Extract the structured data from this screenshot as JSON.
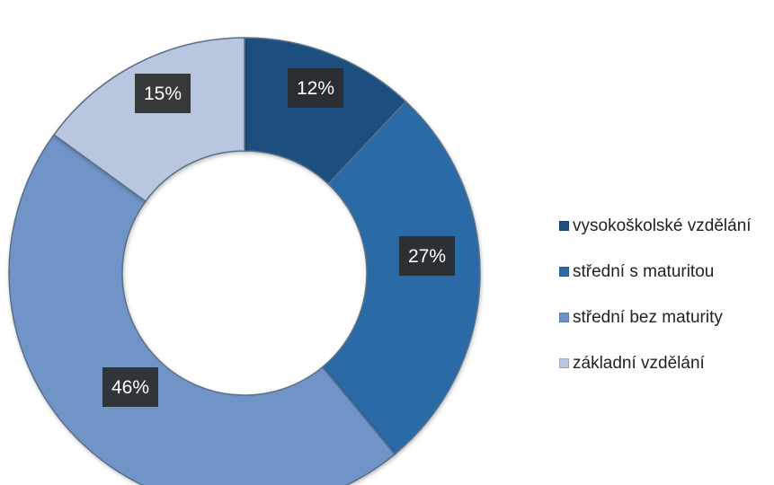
{
  "chart_data": {
    "type": "pie",
    "donut": true,
    "title": "",
    "legend_position": "right",
    "categories": [
      "vysokoškolské vzdělání",
      "střední s maturitou",
      "střední bez maturity",
      "základní vzdělání"
    ],
    "values": [
      12,
      27,
      46,
      15
    ],
    "data_labels": [
      "12%",
      "27%",
      "46%",
      "15%"
    ],
    "colors": [
      "#1f4f7f",
      "#2c6aa6",
      "#6f93c8",
      "#b8c6e0"
    ]
  }
}
